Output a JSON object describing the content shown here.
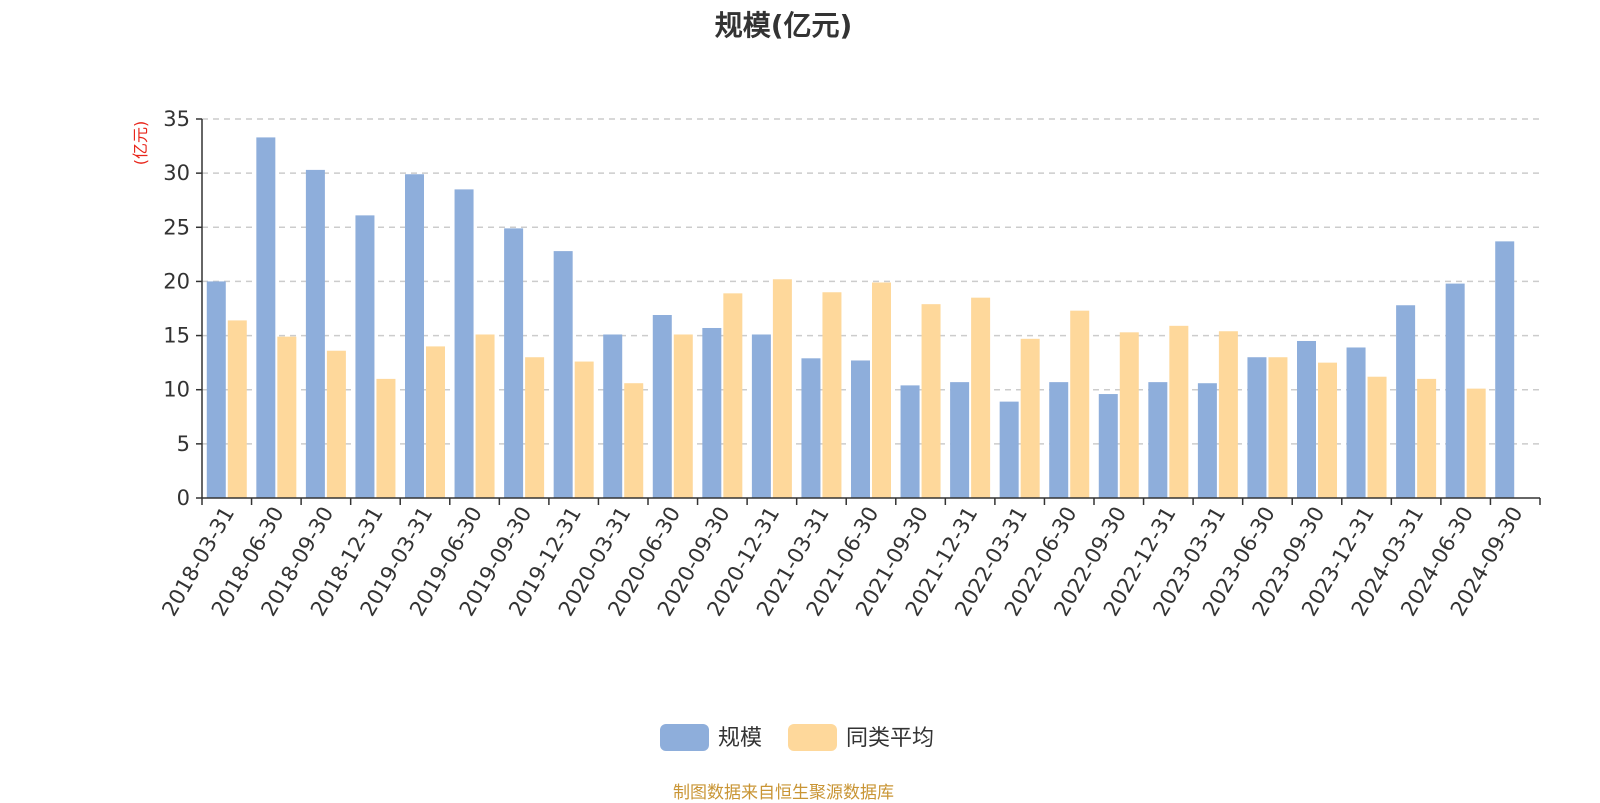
{
  "chart_data": {
    "type": "bar",
    "title": "规模(亿元)",
    "ylabel": "(亿元)",
    "ylim": [
      0,
      35
    ],
    "yticks": [
      0,
      5,
      10,
      15,
      20,
      25,
      30,
      35
    ],
    "grid": true,
    "legend_position": "bottom",
    "categories": [
      "2018-03-31",
      "2018-06-30",
      "2018-09-30",
      "2018-12-31",
      "2019-03-31",
      "2019-06-30",
      "2019-09-30",
      "2019-12-31",
      "2020-03-31",
      "2020-06-30",
      "2020-09-30",
      "2020-12-31",
      "2021-03-31",
      "2021-06-30",
      "2021-09-30",
      "2021-12-31",
      "2022-03-31",
      "2022-06-30",
      "2022-09-30",
      "2022-12-31",
      "2023-03-31",
      "2023-06-30",
      "2023-09-30",
      "2023-12-31",
      "2024-03-31",
      "2024-06-30",
      "2024-09-30"
    ],
    "series": [
      {
        "name": "规模",
        "color": "#8eaedb",
        "values": [
          20.0,
          33.3,
          30.3,
          26.1,
          29.9,
          28.5,
          24.9,
          22.8,
          15.1,
          16.9,
          15.7,
          15.1,
          12.9,
          12.7,
          10.4,
          10.7,
          8.9,
          10.7,
          9.6,
          10.7,
          10.6,
          13.0,
          14.5,
          13.9,
          17.8,
          19.8,
          23.7
        ]
      },
      {
        "name": "同类平均",
        "color": "#fed89b",
        "values": [
          16.4,
          14.9,
          13.6,
          11.0,
          14.0,
          15.1,
          13.0,
          12.6,
          10.6,
          15.1,
          18.9,
          20.2,
          19.0,
          19.9,
          17.9,
          18.5,
          14.7,
          17.3,
          15.3,
          15.9,
          15.4,
          13.0,
          12.5,
          11.2,
          11.0,
          10.1,
          null
        ]
      }
    ]
  },
  "footer": {
    "source": "制图数据来自恒生聚源数据库"
  }
}
